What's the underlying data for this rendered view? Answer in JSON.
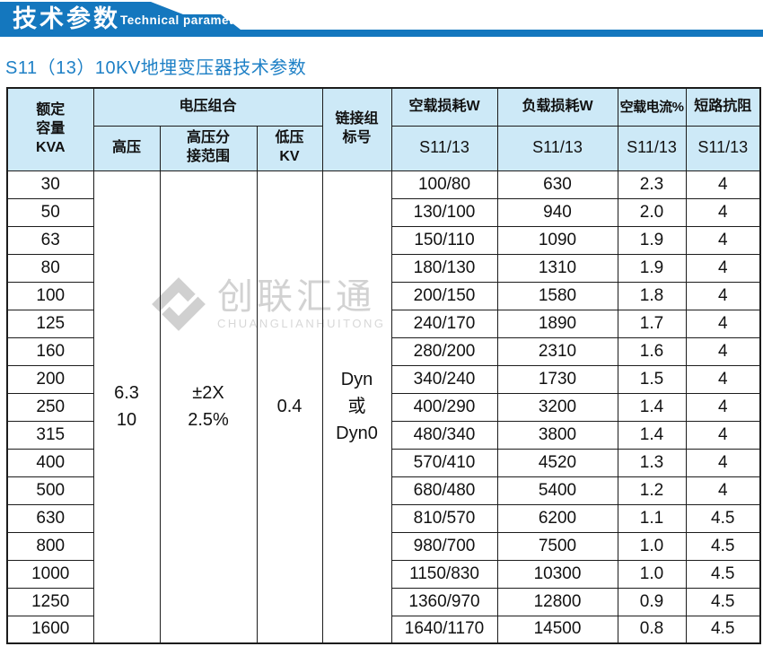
{
  "banner": {
    "title": "技术参数",
    "subtitle": "Technical parameter"
  },
  "page_title": "S11（13）10KV地埋变压器技术参数",
  "watermark": {
    "name": "创联汇通",
    "latin": "CHUANGLIANHUITONG"
  },
  "colors": {
    "banner_blue": "#1477be",
    "title_blue": "#1e80c6",
    "header_bg": "#cde9f7",
    "border": "#1c1c1c",
    "watermark_gray": "#d2d2d2"
  },
  "chart_data": {
    "type": "table",
    "title": "S11（13）10KV地埋变压器技术参数",
    "header": {
      "capacity": "额定\n容量\nKVA",
      "voltage_group": "电压组合",
      "hv": "高压",
      "tap_range": "高压分\n接范围",
      "lv": "低压\nKV",
      "vector_group": "链接组\n标号",
      "noload_loss": "空载损耗W",
      "load_loss": "负载损耗W",
      "noload_current": "空载电流%",
      "impedance": "短路抗阻",
      "sub_noload_loss": "S11/13",
      "sub_load_loss": "S11/13",
      "sub_noload_current": "S11/13",
      "sub_impedance": "S11/13"
    },
    "merged": {
      "hv": "6.3\n10",
      "tap": "±2X\n2.5%",
      "lv": "0.4",
      "vector": "Dyn\n或\nDyn0"
    },
    "rows": [
      [
        "30",
        "100/80",
        "630",
        "2.3",
        "4"
      ],
      [
        "50",
        "130/100",
        "940",
        "2.0",
        "4"
      ],
      [
        "63",
        "150/110",
        "1090",
        "1.9",
        "4"
      ],
      [
        "80",
        "180/130",
        "1310",
        "1.9",
        "4"
      ],
      [
        "100",
        "200/150",
        "1580",
        "1.8",
        "4"
      ],
      [
        "125",
        "240/170",
        "1890",
        "1.7",
        "4"
      ],
      [
        "160",
        "280/200",
        "2310",
        "1.6",
        "4"
      ],
      [
        "200",
        "340/240",
        "1730",
        "1.5",
        "4"
      ],
      [
        "250",
        "400/290",
        "3200",
        "1.4",
        "4"
      ],
      [
        "315",
        "480/340",
        "3800",
        "1.4",
        "4"
      ],
      [
        "400",
        "570/410",
        "4520",
        "1.3",
        "4"
      ],
      [
        "500",
        "680/480",
        "5400",
        "1.2",
        "4"
      ],
      [
        "630",
        "810/570",
        "6200",
        "1.1",
        "4.5"
      ],
      [
        "800",
        "980/700",
        "7500",
        "1.0",
        "4.5"
      ],
      [
        "1000",
        "1150/830",
        "10300",
        "1.0",
        "4.5"
      ],
      [
        "1250",
        "1360/970",
        "12800",
        "0.9",
        "4.5"
      ],
      [
        "1600",
        "1640/1170",
        "14500",
        "0.8",
        "4.5"
      ]
    ]
  }
}
